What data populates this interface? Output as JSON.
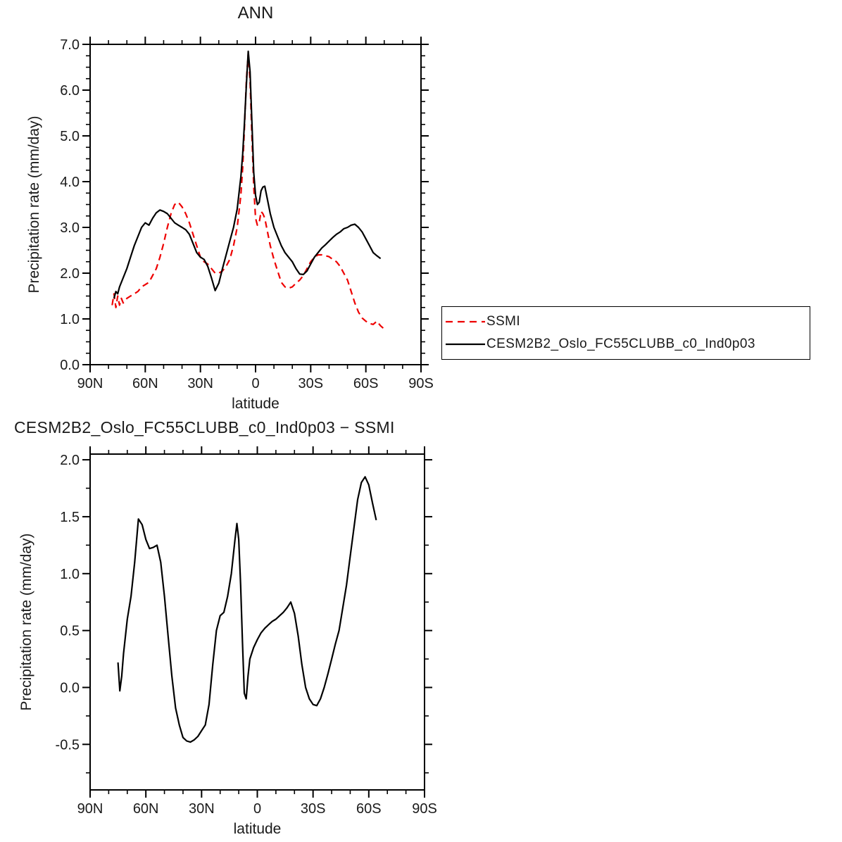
{
  "figure": {
    "background": "#ffffff"
  },
  "legend": {
    "position": "right-of-top-plot",
    "border_color": "#000000",
    "items": [
      {
        "label": "SSMI",
        "color": "#ee0000",
        "line_style": "dashed"
      },
      {
        "label": "CESM2B2_Oslo_FC55CLUBB_c0_Ind0p03",
        "color": "#000000",
        "line_style": "solid"
      }
    ]
  },
  "chart_data": [
    {
      "type": "line",
      "title": "ANN",
      "xlabel": "latitude",
      "ylabel": "Precipitation rate (mm/day)",
      "xlim": [
        90,
        -90
      ],
      "ylim": [
        0,
        7
      ],
      "grid": false,
      "xticks": {
        "values": [
          90,
          60,
          30,
          0,
          -30,
          -60,
          -90
        ],
        "labels": [
          "90N",
          "60N",
          "30N",
          "0",
          "30S",
          "60S",
          "90S"
        ],
        "minor_step": 10
      },
      "yticks": {
        "values": [
          0,
          1,
          2,
          3,
          4,
          5,
          6,
          7
        ],
        "labels": [
          "0.0",
          "1.0",
          "2.0",
          "3.0",
          "4.0",
          "5.0",
          "6.0",
          "7.0"
        ],
        "minor_step": 0.25
      },
      "series": [
        {
          "name": "SSMI",
          "color": "#ee0000",
          "dash": "9,6",
          "x": [
            78,
            77,
            76,
            75,
            74,
            73,
            72,
            70,
            68,
            66,
            64,
            62,
            60,
            58,
            56,
            54,
            52,
            50,
            48,
            46,
            44,
            42,
            40,
            38,
            36,
            34,
            32,
            30,
            28,
            26,
            24,
            22,
            20,
            18,
            16,
            14,
            12,
            10,
            8,
            7,
            6,
            5,
            4,
            3,
            2,
            1,
            0,
            -1,
            -2,
            -3,
            -4,
            -5,
            -6,
            -8,
            -10,
            -12,
            -14,
            -16,
            -18,
            -20,
            -22,
            -24,
            -26,
            -28,
            -30,
            -32,
            -34,
            -36,
            -38,
            -40,
            -42,
            -44,
            -46,
            -48,
            -50,
            -52,
            -54,
            -56,
            -58,
            -60,
            -62,
            -64,
            -66,
            -68,
            -70
          ],
          "y": [
            1.3,
            1.55,
            1.25,
            1.5,
            1.3,
            1.45,
            1.35,
            1.45,
            1.5,
            1.55,
            1.6,
            1.7,
            1.75,
            1.8,
            1.95,
            2.1,
            2.35,
            2.65,
            3.0,
            3.3,
            3.5,
            3.55,
            3.45,
            3.3,
            3.1,
            2.85,
            2.6,
            2.35,
            2.25,
            2.2,
            2.1,
            2.0,
            2.0,
            2.05,
            2.15,
            2.3,
            2.6,
            3.0,
            3.7,
            4.3,
            5.2,
            6.2,
            6.8,
            6.2,
            5.0,
            3.9,
            3.2,
            3.05,
            3.1,
            3.35,
            3.3,
            3.2,
            3.0,
            2.6,
            2.3,
            2.05,
            1.8,
            1.7,
            1.67,
            1.7,
            1.78,
            1.85,
            1.95,
            2.1,
            2.25,
            2.35,
            2.4,
            2.4,
            2.38,
            2.36,
            2.3,
            2.25,
            2.15,
            2.0,
            1.85,
            1.6,
            1.35,
            1.15,
            1.02,
            0.95,
            0.9,
            0.88,
            0.95,
            0.85,
            0.78
          ]
        },
        {
          "name": "CESM2B2_Oslo_FC55CLUBB_c0_Ind0p03",
          "color": "#000000",
          "dash": null,
          "x": [
            77,
            76,
            75,
            74,
            72,
            70,
            68,
            66,
            64,
            62,
            60,
            58,
            56,
            54,
            52,
            50,
            48,
            46,
            44,
            42,
            40,
            38,
            36,
            34,
            32,
            30,
            28,
            26,
            24,
            22,
            20,
            18,
            16,
            14,
            12,
            10,
            8,
            7,
            6,
            5,
            4,
            3,
            2,
            1,
            0,
            -1,
            -2,
            -3,
            -4,
            -5,
            -6,
            -8,
            -10,
            -12,
            -14,
            -16,
            -18,
            -20,
            -22,
            -24,
            -26,
            -28,
            -30,
            -32,
            -34,
            -36,
            -38,
            -40,
            -42,
            -44,
            -46,
            -48,
            -50,
            -52,
            -54,
            -56,
            -58,
            -60,
            -62,
            -64,
            -66,
            -68
          ],
          "y": [
            1.45,
            1.6,
            1.55,
            1.7,
            1.9,
            2.1,
            2.35,
            2.6,
            2.8,
            3.0,
            3.1,
            3.05,
            3.2,
            3.32,
            3.38,
            3.35,
            3.3,
            3.2,
            3.1,
            3.05,
            3.0,
            2.95,
            2.85,
            2.65,
            2.45,
            2.35,
            2.3,
            2.15,
            1.9,
            1.62,
            1.78,
            2.1,
            2.4,
            2.7,
            3.0,
            3.4,
            4.1,
            4.6,
            5.3,
            6.1,
            6.85,
            6.4,
            5.3,
            4.2,
            3.7,
            3.5,
            3.55,
            3.8,
            3.88,
            3.9,
            3.7,
            3.3,
            3.0,
            2.8,
            2.6,
            2.45,
            2.35,
            2.25,
            2.1,
            1.98,
            1.97,
            2.05,
            2.2,
            2.35,
            2.45,
            2.55,
            2.62,
            2.7,
            2.78,
            2.85,
            2.9,
            2.97,
            3.0,
            3.05,
            3.07,
            3.0,
            2.9,
            2.75,
            2.6,
            2.45,
            2.38,
            2.32
          ]
        }
      ]
    },
    {
      "type": "line",
      "title": "CESM2B2_Oslo_FC55CLUBB_c0_Ind0p03 − SSMI",
      "xlabel": "latitude",
      "ylabel": "Precipitation rate (mm/day)",
      "xlim": [
        90,
        -90
      ],
      "ylim": [
        -0.9,
        2.05
      ],
      "grid": false,
      "xticks": {
        "values": [
          90,
          60,
          30,
          0,
          -30,
          -60,
          -90
        ],
        "labels": [
          "90N",
          "60N",
          "30N",
          "0",
          "30S",
          "60S",
          "90S"
        ],
        "minor_step": 10
      },
      "yticks": {
        "values": [
          -0.5,
          0,
          0.5,
          1,
          1.5,
          2
        ],
        "labels": [
          "-0.5",
          "0.0",
          "0.5",
          "1.0",
          "1.5",
          "2.0"
        ],
        "minor_step": 0.25
      },
      "series": [
        {
          "name": "CESM2B2_Oslo_FC55CLUBB_c0_Ind0p03 minus SSMI",
          "color": "#000000",
          "dash": null,
          "x": [
            75,
            74,
            73,
            72,
            70,
            68,
            66,
            64,
            62,
            60,
            58,
            56,
            54,
            52,
            50,
            48,
            46,
            44,
            42,
            40,
            38,
            36,
            34,
            32,
            30,
            28,
            26,
            24,
            22,
            20,
            18,
            16,
            14,
            12,
            11,
            10,
            9,
            8,
            7,
            6,
            5,
            4,
            2,
            0,
            -2,
            -4,
            -6,
            -8,
            -10,
            -12,
            -14,
            -16,
            -18,
            -20,
            -22,
            -24,
            -26,
            -28,
            -30,
            -32,
            -34,
            -36,
            -38,
            -40,
            -42,
            -44,
            -46,
            -48,
            -50,
            -52,
            -54,
            -56,
            -58,
            -60,
            -62,
            -64
          ],
          "y": [
            0.22,
            -0.03,
            0.1,
            0.3,
            0.6,
            0.8,
            1.1,
            1.48,
            1.43,
            1.3,
            1.22,
            1.23,
            1.25,
            1.1,
            0.8,
            0.45,
            0.1,
            -0.18,
            -0.33,
            -0.44,
            -0.47,
            -0.48,
            -0.46,
            -0.43,
            -0.38,
            -0.33,
            -0.15,
            0.2,
            0.5,
            0.63,
            0.66,
            0.8,
            1.0,
            1.3,
            1.44,
            1.3,
            0.9,
            0.4,
            -0.05,
            -0.1,
            0.1,
            0.25,
            0.35,
            0.42,
            0.48,
            0.52,
            0.55,
            0.58,
            0.6,
            0.63,
            0.66,
            0.7,
            0.75,
            0.65,
            0.45,
            0.2,
            0.0,
            -0.1,
            -0.15,
            -0.16,
            -0.1,
            0.0,
            0.12,
            0.25,
            0.38,
            0.5,
            0.7,
            0.9,
            1.15,
            1.4,
            1.65,
            1.8,
            1.85,
            1.78,
            1.62,
            1.47
          ]
        }
      ]
    }
  ]
}
